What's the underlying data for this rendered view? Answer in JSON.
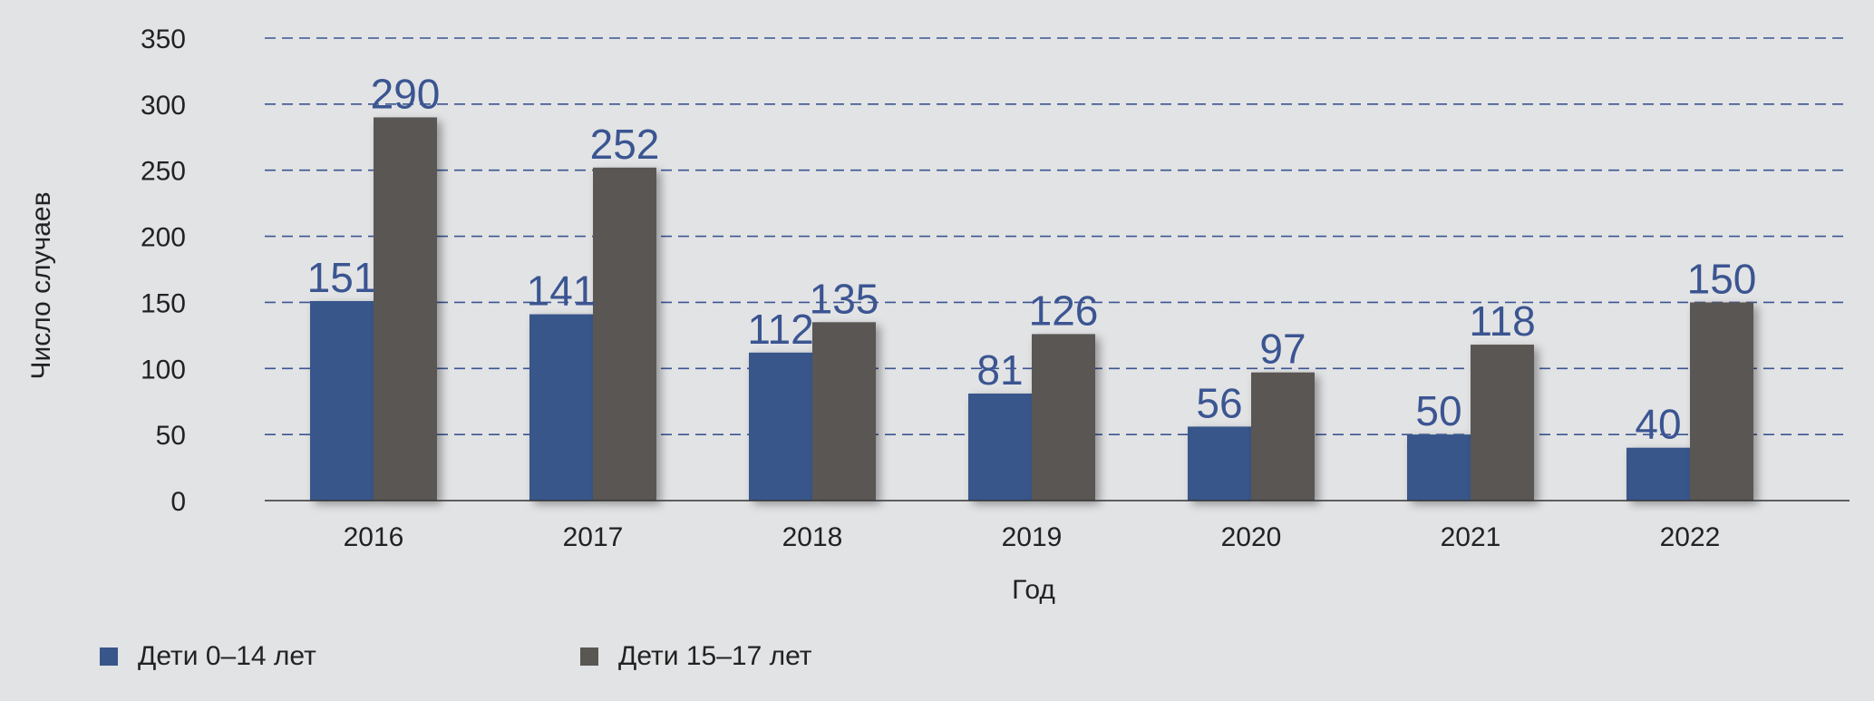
{
  "chart_data": {
    "type": "bar",
    "title": "",
    "xlabel": "Год",
    "ylabel": "Число случаев",
    "ylim": [
      0,
      350
    ],
    "yticks": [
      0,
      50,
      100,
      150,
      200,
      250,
      300,
      350
    ],
    "categories": [
      "2016",
      "2017",
      "2018",
      "2019",
      "2020",
      "2021",
      "2022"
    ],
    "series": [
      {
        "name": "Дети 0–14 лет",
        "color": "#39568a",
        "values": [
          151,
          141,
          112,
          81,
          56,
          50,
          40
        ]
      },
      {
        "name": "Дети 15–17 лет",
        "color": "#5a5752",
        "values": [
          290,
          252,
          135,
          126,
          97,
          118,
          150
        ]
      }
    ],
    "data_labels": true,
    "grid": "horizontal dashed",
    "legend_position": "bottom-left",
    "colors": {
      "background": "#e2e3e5",
      "grid": "#3b5591",
      "data_label": "#3b5591",
      "text": "#222222"
    }
  }
}
